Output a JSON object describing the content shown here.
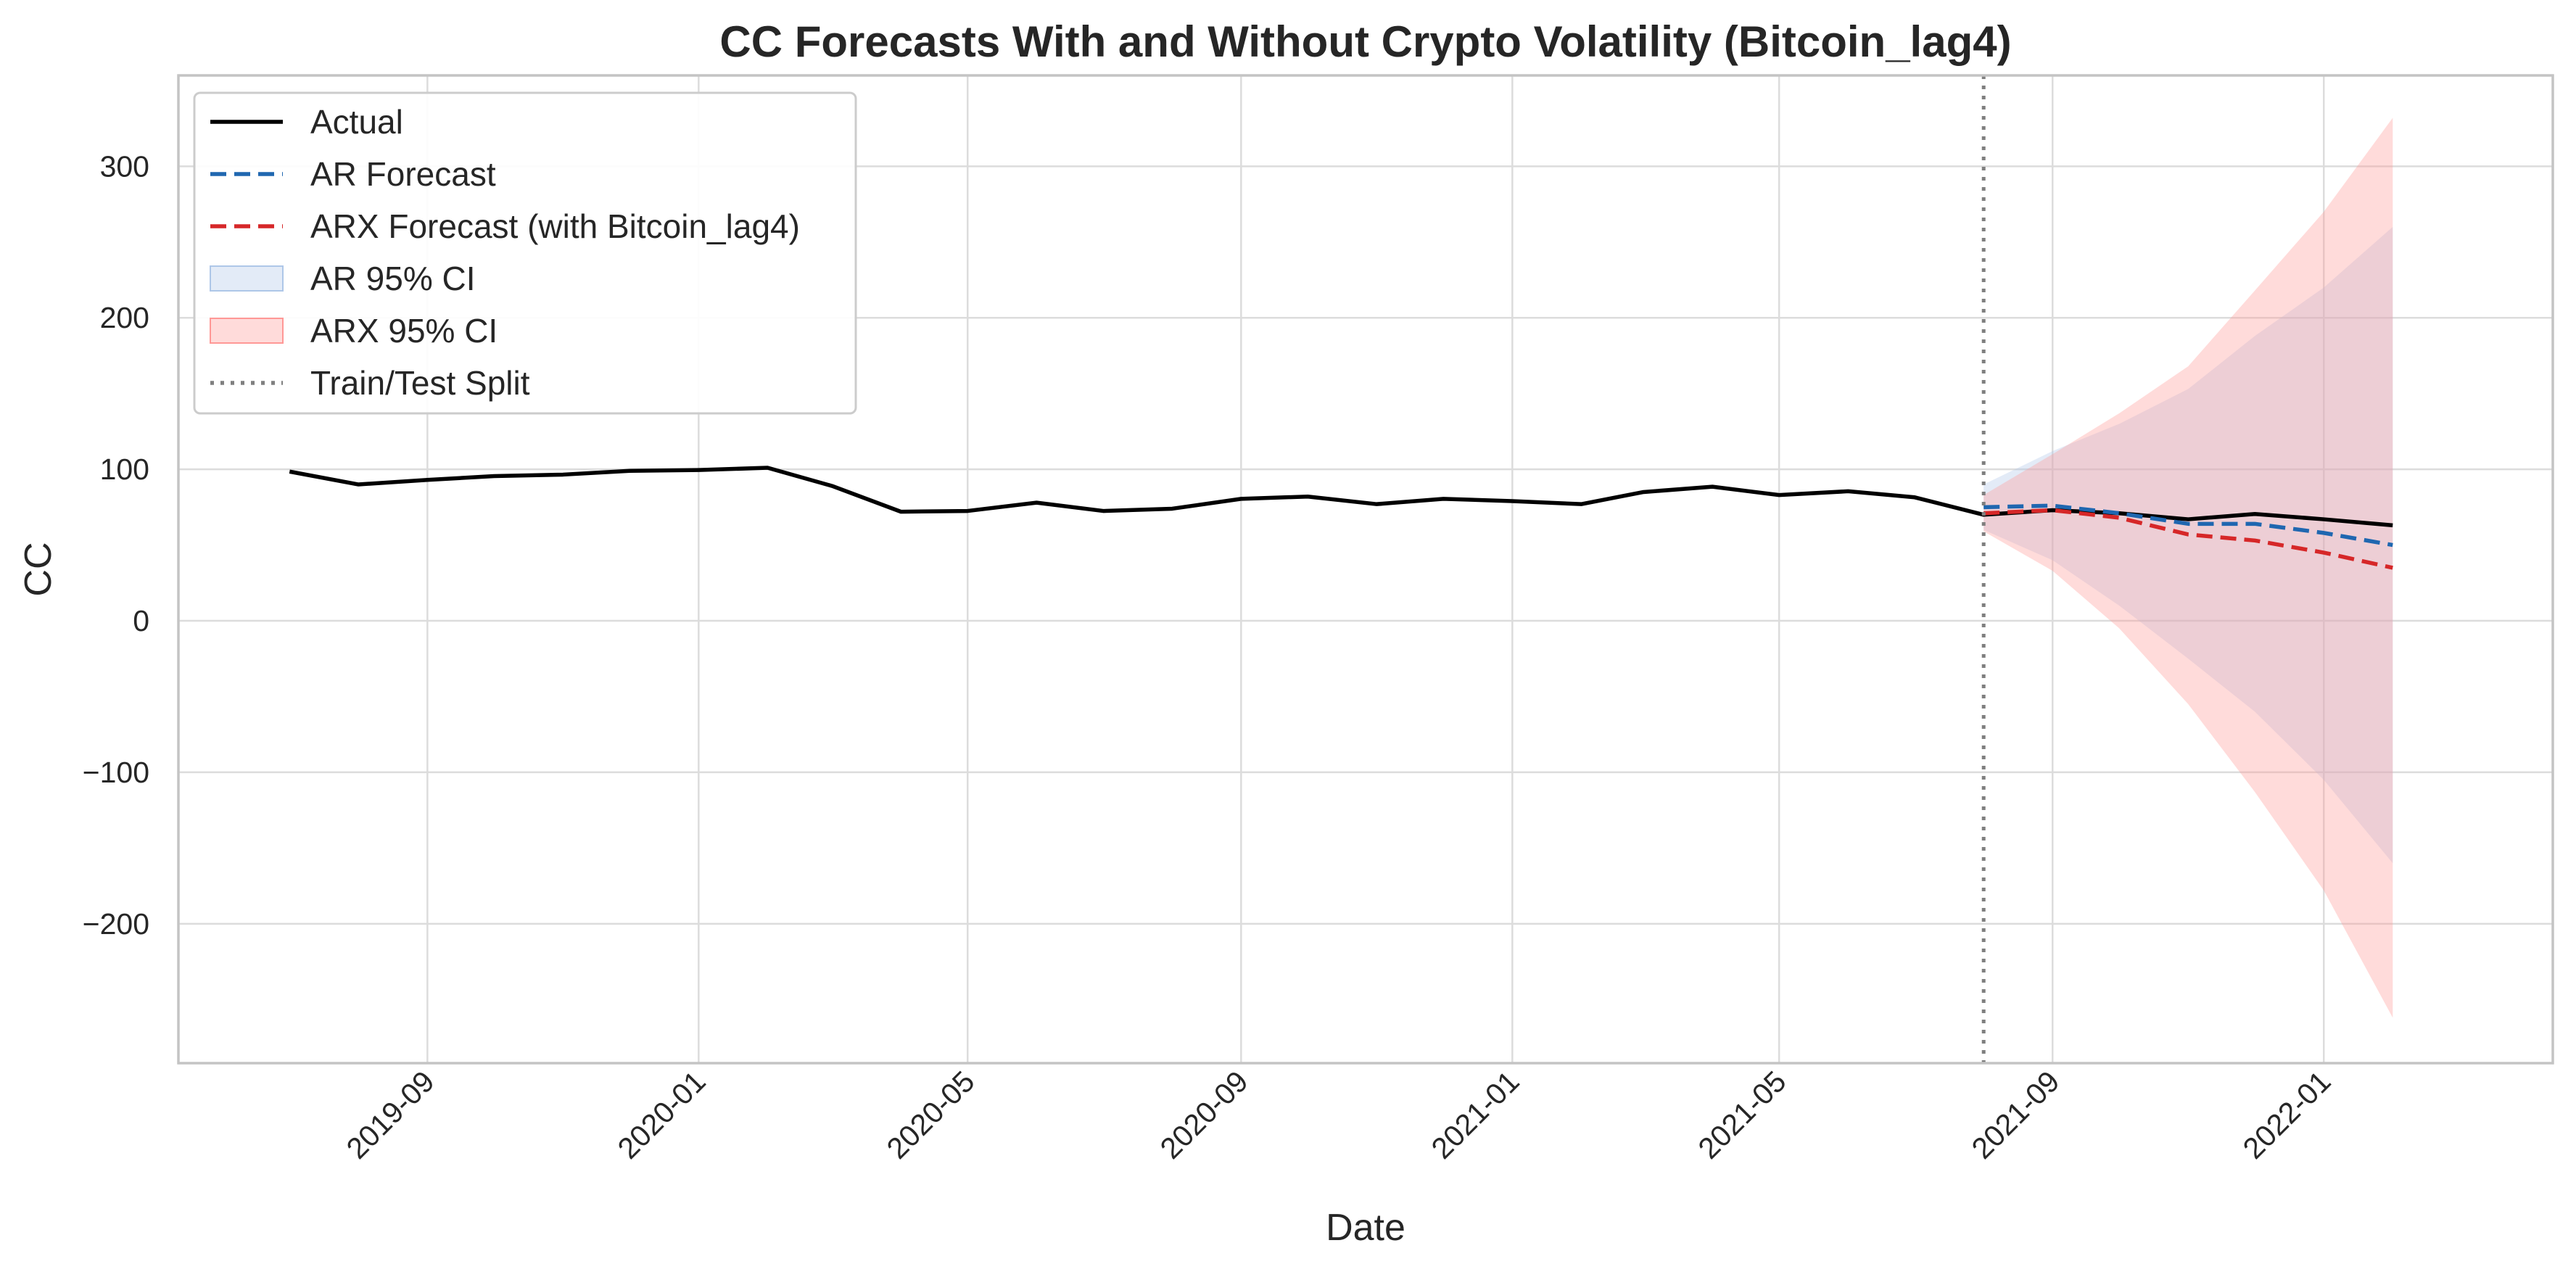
{
  "chart_data": {
    "type": "line",
    "title": "CC Forecasts With and Without Crypto Volatility (Bitcoin_lag4)",
    "xlabel": "Date",
    "ylabel": "CC",
    "x_axis_type": "date",
    "xlim": [
      "2019-05-12",
      "2022-04-14"
    ],
    "ylim": [
      -292,
      360
    ],
    "x_ticks": [
      "2019-09-01",
      "2020-01-01",
      "2020-05-01",
      "2020-09-01",
      "2021-01-01",
      "2021-05-01",
      "2021-09-01",
      "2022-01-01"
    ],
    "x_tick_labels": [
      "2019-09",
      "2020-01",
      "2020-05",
      "2020-09",
      "2021-01",
      "2021-05",
      "2021-09",
      "2022-01"
    ],
    "y_ticks": [
      300,
      200,
      100,
      0,
      -100,
      -200
    ],
    "y_tick_labels": [
      "300",
      "200",
      "100",
      "0",
      "−100",
      "−200"
    ],
    "grid": true,
    "legend_position": "top-left",
    "series": [
      {
        "name": "Actual",
        "color": "#000000",
        "style": "solid",
        "x": [
          "2019-07-01",
          "2019-08-01",
          "2019-09-01",
          "2019-10-01",
          "2019-11-01",
          "2019-12-01",
          "2020-01-01",
          "2020-02-01",
          "2020-03-01",
          "2020-04-01",
          "2020-05-01",
          "2020-06-01",
          "2020-07-01",
          "2020-08-01",
          "2020-09-01",
          "2020-10-01",
          "2020-11-01",
          "2020-12-01",
          "2021-01-01",
          "2021-02-01",
          "2021-03-01",
          "2021-04-01",
          "2021-05-01",
          "2021-06-01",
          "2021-07-01",
          "2021-08-01",
          "2021-09-01",
          "2021-10-01",
          "2021-11-01",
          "2021-12-01",
          "2022-01-01",
          "2022-02-01"
        ],
        "values": [
          98.5,
          90,
          93,
          95.5,
          96.5,
          99,
          99.5,
          101,
          89,
          72,
          72.5,
          78,
          72.5,
          74,
          80.5,
          82,
          77,
          80.5,
          79,
          77,
          85,
          88.5,
          83,
          85.5,
          81.5,
          70,
          73,
          71,
          67,
          70.5,
          67,
          63
        ]
      },
      {
        "name": "AR Forecast",
        "color": "#1f67b0",
        "style": "dashed",
        "x": [
          "2021-08-01",
          "2021-09-01",
          "2021-10-01",
          "2021-11-01",
          "2021-12-01",
          "2022-01-01",
          "2022-02-01"
        ],
        "values": [
          75,
          76,
          71,
          64,
          64,
          58,
          50
        ]
      },
      {
        "name": "ARX Forecast (with Bitcoin_lag4)",
        "color": "#d62728",
        "style": "dashed",
        "x": [
          "2021-08-01",
          "2021-09-01",
          "2021-10-01",
          "2021-11-01",
          "2021-12-01",
          "2022-01-01",
          "2022-02-01"
        ],
        "values": [
          71,
          73,
          68,
          57,
          53,
          45,
          35
        ]
      }
    ],
    "bands": [
      {
        "name": "AR 95% CI",
        "color": "#aec7e8",
        "x": [
          "2021-08-01",
          "2021-09-01",
          "2021-10-01",
          "2021-11-01",
          "2021-12-01",
          "2022-01-01",
          "2022-02-01"
        ],
        "lower": [
          60,
          40,
          10,
          -25,
          -60,
          -105,
          -160
        ],
        "upper": [
          90,
          112,
          130,
          153,
          188,
          220,
          260
        ]
      },
      {
        "name": "ARX 95% CI",
        "color": "#ff9896",
        "x": [
          "2021-08-01",
          "2021-09-01",
          "2021-10-01",
          "2021-11-01",
          "2021-12-01",
          "2022-01-01",
          "2022-02-01"
        ],
        "lower": [
          59,
          33,
          -5,
          -55,
          -113,
          -178,
          -262
        ],
        "upper": [
          83,
          110,
          137,
          168,
          218,
          270,
          332
        ]
      }
    ],
    "vline": {
      "name": "Train/Test Split",
      "x": "2021-08-01",
      "color": "#7f7f7f",
      "style": "dotted"
    },
    "legend": [
      "Actual",
      "AR Forecast",
      "ARX Forecast (with Bitcoin_lag4)",
      "AR 95% CI",
      "ARX 95% CI",
      "Train/Test Split"
    ]
  }
}
